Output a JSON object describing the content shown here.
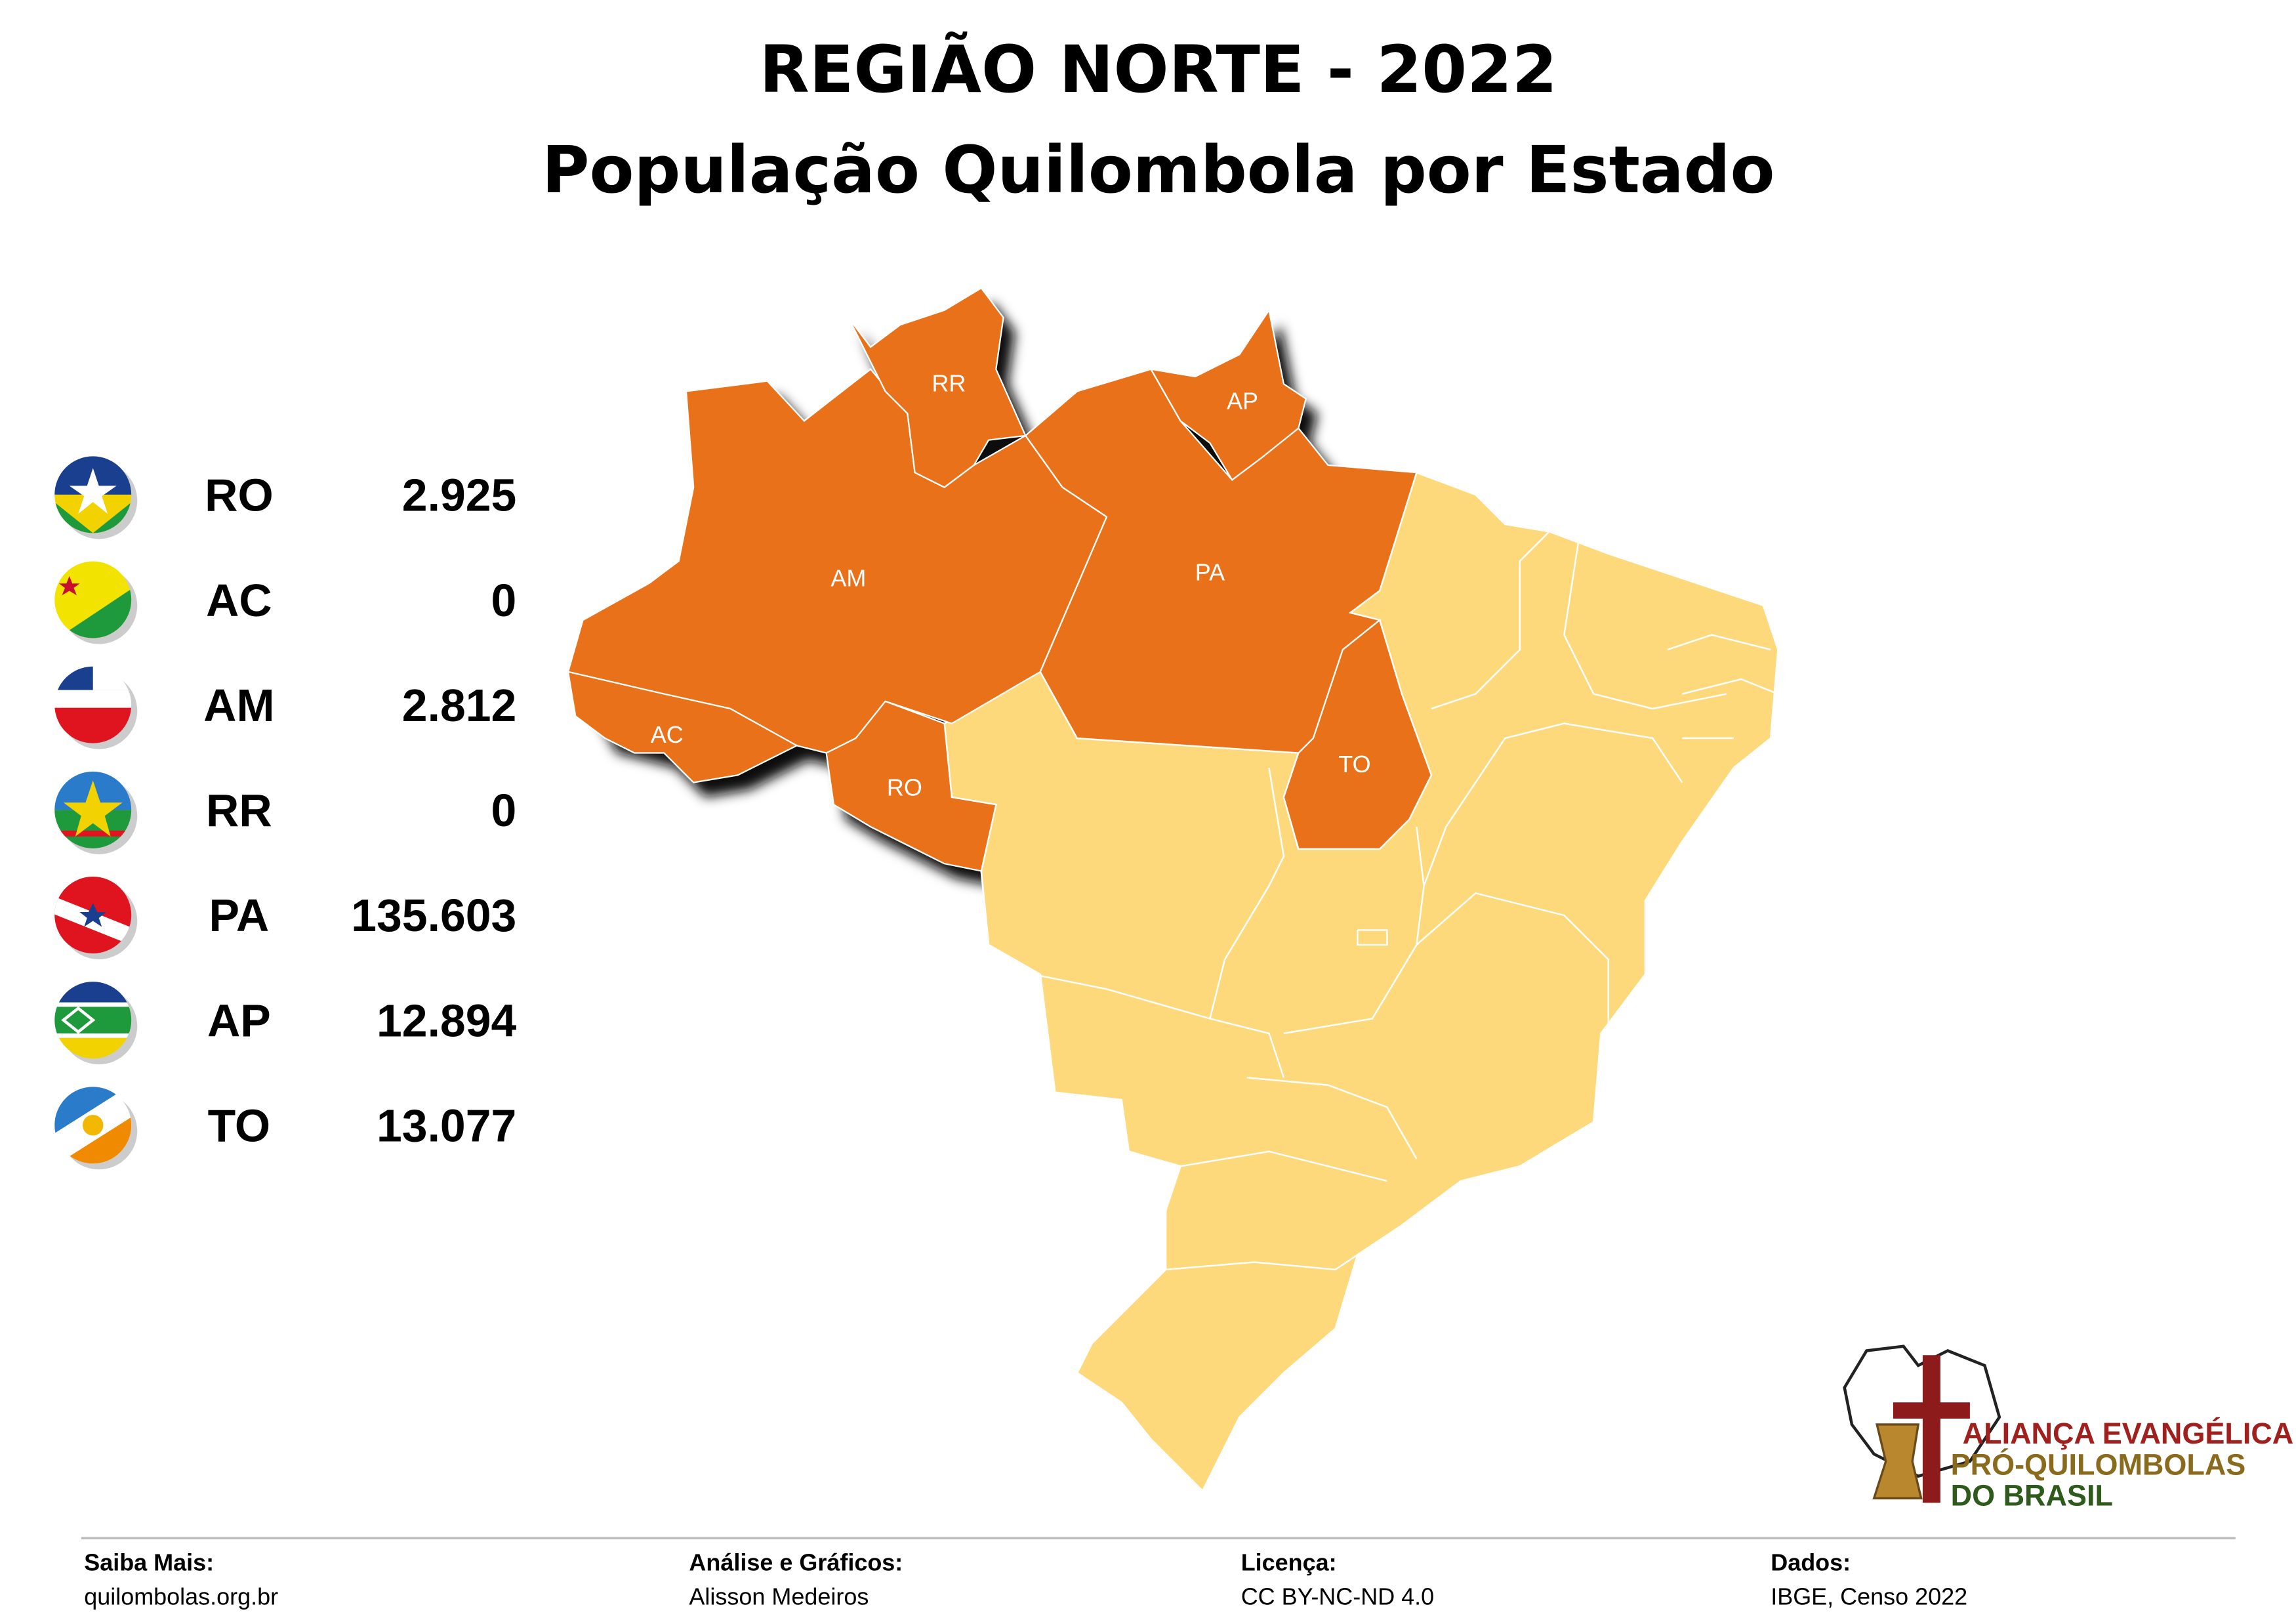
{
  "header": {
    "title": "REGIÃO NORTE - 2022",
    "subtitle": "População Quilombola por Estado"
  },
  "states": [
    {
      "code": "RO",
      "value": "2.925"
    },
    {
      "code": "AC",
      "value": "0"
    },
    {
      "code": "AM",
      "value": "2.812"
    },
    {
      "code": "RR",
      "value": "0"
    },
    {
      "code": "PA",
      "value": "135.603"
    },
    {
      "code": "AP",
      "value": "12.894"
    },
    {
      "code": "TO",
      "value": "13.077"
    }
  ],
  "map_labels": [
    "RR",
    "AP",
    "AM",
    "PA",
    "AC",
    "RO",
    "TO"
  ],
  "logo": {
    "lines": [
      "ALIANÇA EVANGÉLICA",
      "PRÓ-QUILOMBOLAS",
      "DO BRASIL"
    ]
  },
  "footer": [
    {
      "label": "Saiba Mais:",
      "text": "quilombolas.org.br"
    },
    {
      "label": "Análise e Gráficos:",
      "text": "Alisson Medeiros"
    },
    {
      "label": "Licença:",
      "text": "CC BY-NC-ND 4.0"
    },
    {
      "label": "Dados:",
      "text": "IBGE, Censo 2022"
    }
  ]
}
